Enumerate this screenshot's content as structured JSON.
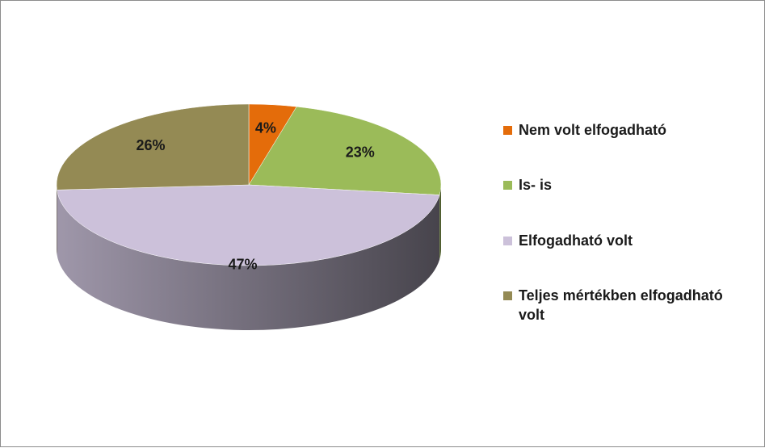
{
  "chart_data": {
    "type": "pie",
    "categories": [
      "Nem volt elfogadható",
      "Is- is",
      "Elfogadható volt",
      "Teljes mértékben elfogadható volt"
    ],
    "values": [
      4,
      23,
      47,
      26
    ],
    "value_labels": [
      "4%",
      "23%",
      "47%",
      "26%"
    ],
    "colors": [
      "#e46c0a",
      "#9bbb59",
      "#ccc1da",
      "#948a54"
    ],
    "legend": "right"
  }
}
